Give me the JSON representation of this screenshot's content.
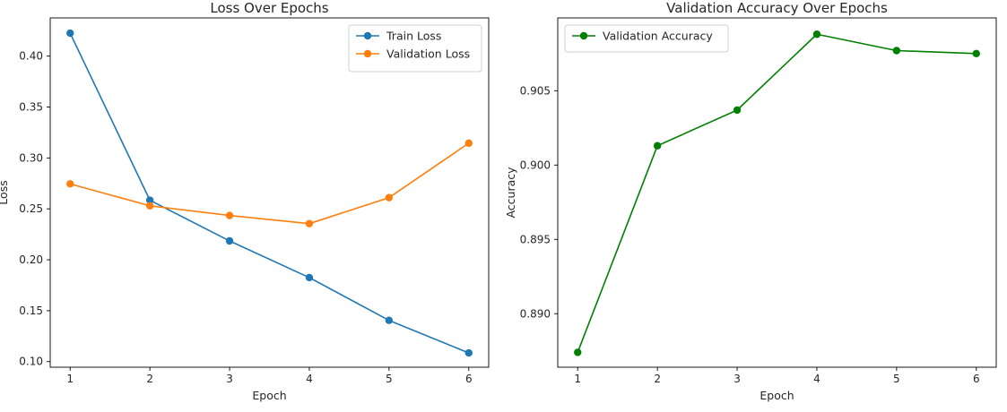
{
  "chart_data": [
    {
      "type": "line",
      "title": "Loss Over Epochs",
      "xlabel": "Epoch",
      "ylabel": "Loss",
      "x": [
        1,
        2,
        3,
        4,
        5,
        6
      ],
      "xticks": [
        "1",
        "2",
        "3",
        "4",
        "5",
        "6"
      ],
      "yticks": [
        "0.10",
        "0.15",
        "0.20",
        "0.25",
        "0.30",
        "0.35",
        "0.40"
      ],
      "xlim": [
        0.75,
        6.25
      ],
      "ylim": [
        0.0945,
        0.4375
      ],
      "grid": false,
      "legend": "top-right",
      "series": [
        {
          "name": "Train Loss",
          "color": "#1f77b4",
          "marker": "circle",
          "values": [
            0.4225,
            0.2585,
            0.2185,
            0.1825,
            0.1405,
            0.1085
          ]
        },
        {
          "name": "Validation Loss",
          "color": "#ff7f0e",
          "marker": "circle",
          "values": [
            0.2745,
            0.253,
            0.2435,
            0.2355,
            0.261,
            0.3145
          ]
        }
      ]
    },
    {
      "type": "line",
      "title": "Validation Accuracy Over Epochs",
      "xlabel": "Epoch",
      "ylabel": "Accuracy",
      "x": [
        1,
        2,
        3,
        4,
        5,
        6
      ],
      "xticks": [
        "1",
        "2",
        "3",
        "4",
        "5",
        "6"
      ],
      "yticks": [
        "0.890",
        "0.895",
        "0.900",
        "0.905"
      ],
      "xlim": [
        0.75,
        6.25
      ],
      "ylim": [
        0.8864,
        0.9099
      ],
      "grid": false,
      "legend": "top-left",
      "series": [
        {
          "name": "Validation Accuracy",
          "color": "#008000",
          "marker": "circle",
          "values": [
            0.8874,
            0.9013,
            0.9037,
            0.9088,
            0.9077,
            0.9075
          ]
        }
      ]
    }
  ]
}
